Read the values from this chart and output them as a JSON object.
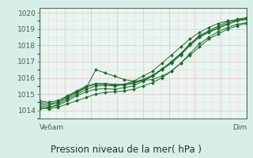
{
  "background_color": "#d8eee8",
  "plot_bg_color": "#e8f5f0",
  "grid_color_major": "#e8c8c8",
  "grid_color_minor": "#f0dada",
  "line_color": "#1a6b2a",
  "marker_color": "#1a6b2a",
  "title": "Pression niveau de la mer( hPa )",
  "xlabel_left": "Ve6am",
  "xlabel_right": "Dim",
  "ylim": [
    1013.5,
    1020.3
  ],
  "xlim": [
    0,
    48
  ],
  "yticks": [
    1014,
    1015,
    1016,
    1017,
    1018,
    1019,
    1020
  ],
  "series": [
    [
      1014.1,
      1014.15,
      1014.4,
      1014.7,
      1015.0,
      1015.3,
      1015.5,
      1015.55,
      1015.5,
      1015.6,
      1015.8,
      1016.1,
      1016.4,
      1016.9,
      1017.4,
      1017.9,
      1018.4,
      1018.8,
      1019.1,
      1019.35,
      1019.5,
      1019.55,
      1019.6
    ],
    [
      1014.2,
      1014.1,
      1014.2,
      1014.4,
      1014.6,
      1014.8,
      1015.0,
      1015.1,
      1015.15,
      1015.2,
      1015.3,
      1015.5,
      1015.7,
      1016.0,
      1016.4,
      1016.9,
      1017.5,
      1018.1,
      1018.5,
      1018.85,
      1019.1,
      1019.3,
      1019.4
    ],
    [
      1014.3,
      1014.2,
      1014.3,
      1014.6,
      1014.9,
      1015.15,
      1015.3,
      1015.35,
      1015.3,
      1015.4,
      1015.5,
      1015.8,
      1016.1,
      1016.5,
      1017.0,
      1017.5,
      1018.1,
      1018.6,
      1018.9,
      1019.2,
      1019.45,
      1019.6,
      1019.7
    ],
    [
      1014.4,
      1014.3,
      1014.5,
      1014.8,
      1015.1,
      1015.4,
      1016.5,
      1016.3,
      1016.1,
      1015.9,
      1015.8,
      1015.85,
      1015.9,
      1016.1,
      1016.4,
      1016.9,
      1017.4,
      1017.9,
      1018.4,
      1018.7,
      1019.0,
      1019.2,
      1019.35
    ],
    [
      1014.5,
      1014.4,
      1014.5,
      1014.85,
      1015.15,
      1015.45,
      1015.6,
      1015.6,
      1015.55,
      1015.55,
      1015.65,
      1015.85,
      1016.1,
      1016.5,
      1016.9,
      1017.4,
      1018.0,
      1018.5,
      1018.8,
      1019.05,
      1019.3,
      1019.5,
      1019.6
    ],
    [
      1014.6,
      1014.5,
      1014.6,
      1014.9,
      1015.2,
      1015.5,
      1015.65,
      1015.65,
      1015.6,
      1015.6,
      1015.7,
      1015.9,
      1016.15,
      1016.55,
      1016.95,
      1017.45,
      1018.05,
      1018.55,
      1018.85,
      1019.1,
      1019.35,
      1019.55,
      1019.65
    ]
  ],
  "n_points": 23,
  "tick_label_fontsize": 6.5,
  "title_fontsize": 8.5,
  "spine_color": "#446644"
}
